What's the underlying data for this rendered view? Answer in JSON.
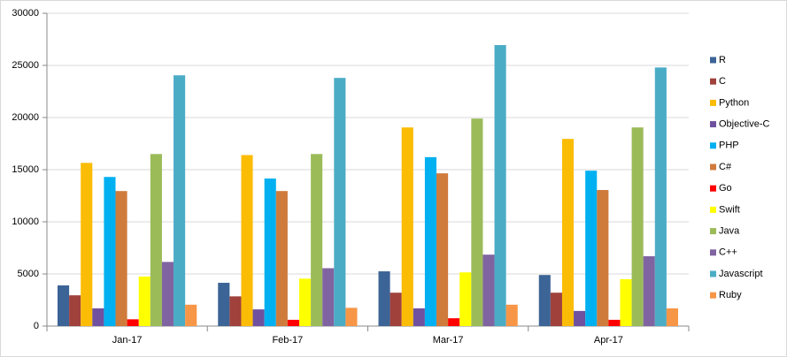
{
  "chart_data": {
    "type": "bar",
    "categories": [
      "Jan-17",
      "Feb-17",
      "Mar-17",
      "Apr-17"
    ],
    "series": [
      {
        "name": "R",
        "color": "#3c6496",
        "values": [
          3900,
          4150,
          5250,
          4900
        ]
      },
      {
        "name": "C",
        "color": "#a0413c",
        "values": [
          2950,
          2850,
          3200,
          3200
        ]
      },
      {
        "name": "Python",
        "color": "#fbbc05",
        "values": [
          15650,
          16400,
          19050,
          17950
        ]
      },
      {
        "name": "Objective-C",
        "color": "#6f51a0",
        "values": [
          1700,
          1600,
          1700,
          1450
        ]
      },
      {
        "name": "PHP",
        "color": "#00b0f0",
        "values": [
          14300,
          14150,
          16200,
          14900
        ]
      },
      {
        "name": "C#",
        "color": "#cf7b3c",
        "values": [
          12950,
          12950,
          14650,
          13050
        ]
      },
      {
        "name": "Go",
        "color": "#ff0000",
        "values": [
          650,
          600,
          750,
          600
        ]
      },
      {
        "name": "Swift",
        "color": "#ffff00",
        "values": [
          4750,
          4550,
          5150,
          4500
        ]
      },
      {
        "name": "Java",
        "color": "#9bbb59",
        "values": [
          16500,
          16500,
          19900,
          19050
        ]
      },
      {
        "name": "C++",
        "color": "#8064a2",
        "values": [
          6150,
          5550,
          6850,
          6700
        ]
      },
      {
        "name": "Javascript",
        "color": "#4bacc6",
        "values": [
          24050,
          23800,
          26950,
          24800
        ]
      },
      {
        "name": "Ruby",
        "color": "#f79646",
        "values": [
          2050,
          1750,
          2050,
          1700
        ]
      }
    ],
    "ylim": [
      0,
      30000
    ],
    "yticks": [
      0,
      5000,
      10000,
      15000,
      20000,
      25000,
      30000
    ],
    "grid": true,
    "legend": "right"
  }
}
